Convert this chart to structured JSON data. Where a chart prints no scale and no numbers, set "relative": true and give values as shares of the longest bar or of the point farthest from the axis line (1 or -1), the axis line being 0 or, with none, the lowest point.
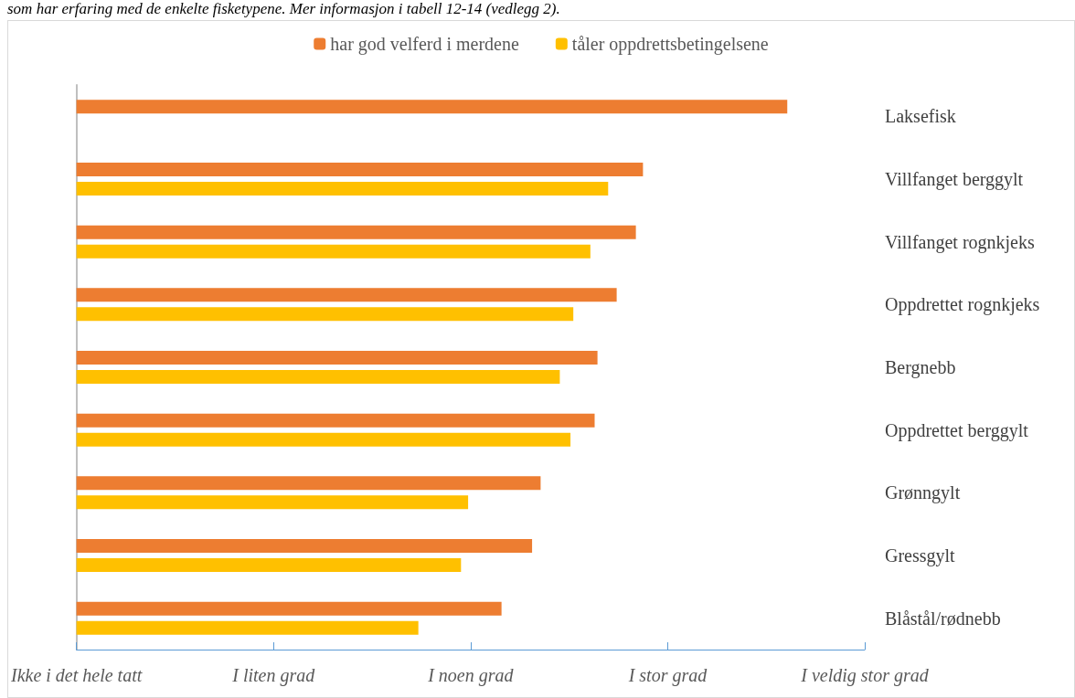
{
  "chart_data": {
    "type": "bar",
    "orientation": "horizontal",
    "relative": true,
    "annotations": [
      "som har erfaring med de enkelte fisketypene. Mer informasjon i tabell 12-14 (vedlegg 2).",
      "Ikke i det hele tatt",
      "I liten grad",
      "I noen grad",
      "I stor grad",
      "I veldig stor grad"
    ],
    "categories": [
      "Laksefisk",
      "Villfanget berggylt",
      "Villfanget rognkjeks",
      "Oppdrettet rognkjeks",
      "Bergnebb",
      "Oppdrettet berggylt",
      "Grønngylt",
      "Gressgylt",
      "Blåstål/rødnebb"
    ],
    "series": [
      {
        "name": "har god velferd i merdene",
        "color": "#ed7d31",
        "values": [
          1,
          0.797,
          0.787,
          0.76,
          0.733,
          0.729,
          0.653,
          0.641,
          0.598
        ]
      },
      {
        "name": "tåler oppdrettsbetingelsene",
        "color": "#ffc000",
        "values": [
          null,
          0.748,
          0.723,
          0.699,
          0.68,
          0.695,
          0.551,
          0.541,
          0.481
        ]
      }
    ],
    "legend": "top"
  }
}
